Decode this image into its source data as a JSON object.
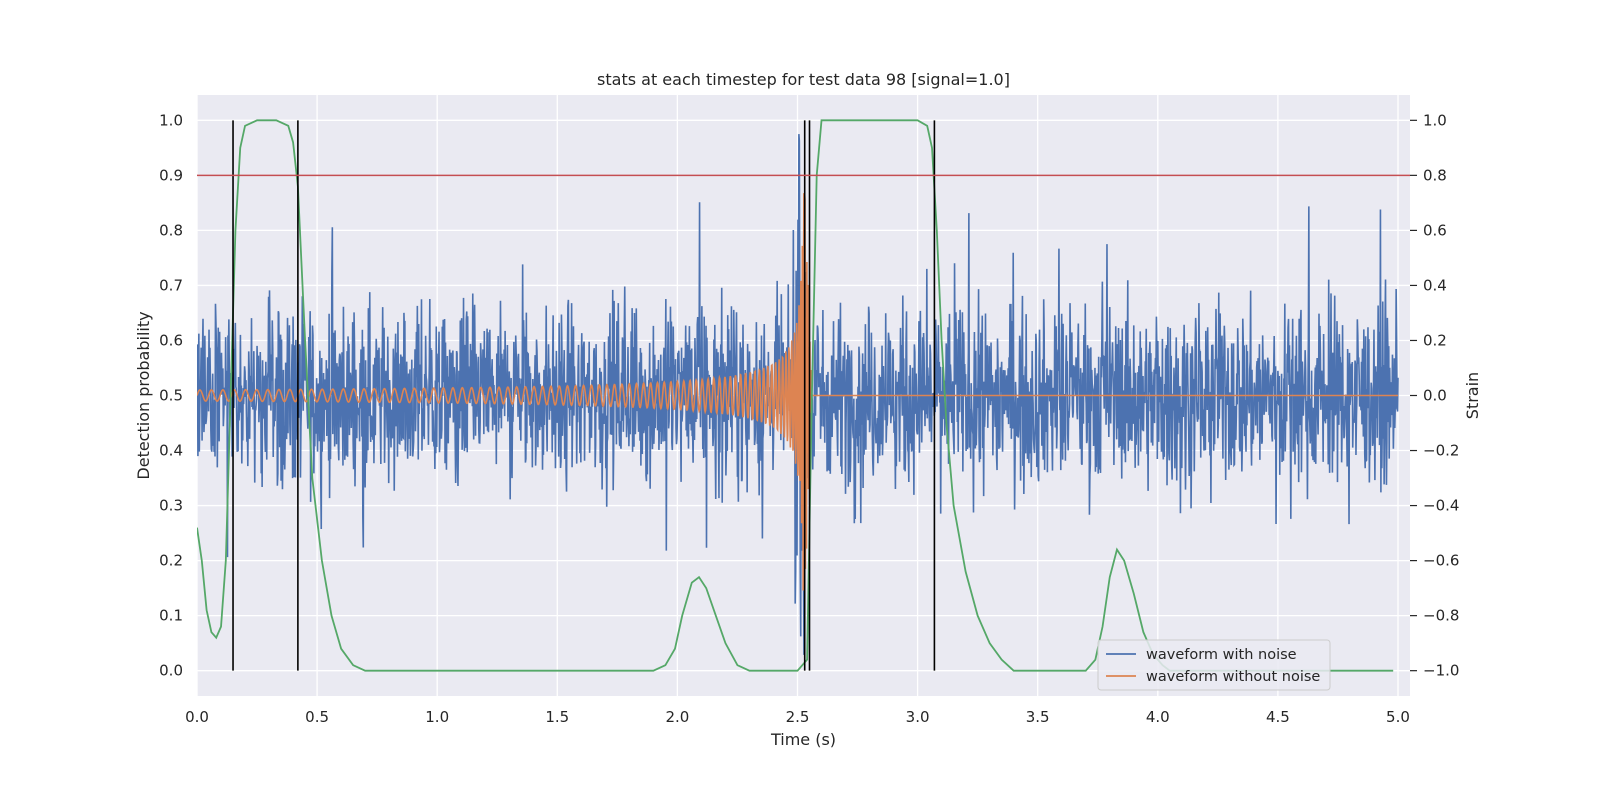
{
  "chart_data": {
    "type": "line",
    "title": "stats at each timestep for test data 98 [signal=1.0]",
    "xlabel": "Time (s)",
    "ylabel_left": "Detection probability",
    "ylabel_right": "Strain",
    "xlim": [
      0.0,
      5.05
    ],
    "ylim_left": [
      -0.046,
      1.046
    ],
    "ylim_right": [
      -1.092,
      1.092
    ],
    "x_ticks": [
      "0.0",
      "0.5",
      "1.0",
      "1.5",
      "2.0",
      "2.5",
      "3.0",
      "3.5",
      "4.0",
      "4.5",
      "5.0"
    ],
    "y_left_ticks": [
      "0.0",
      "0.1",
      "0.2",
      "0.3",
      "0.4",
      "0.5",
      "0.6",
      "0.7",
      "0.8",
      "0.9",
      "1.0"
    ],
    "y_right_ticks": [
      "−1.0",
      "−0.8",
      "−0.6",
      "−0.4",
      "−0.2",
      "0.0",
      "0.2",
      "0.4",
      "0.6",
      "0.8",
      "1.0"
    ],
    "grid": true,
    "background": "#eaeaf2",
    "threshold": {
      "value": 0.9,
      "color": "#c44e52"
    },
    "event_markers_x": [
      0.15,
      0.42,
      2.53,
      2.55,
      3.07
    ],
    "detection_probability": {
      "color": "#55a868",
      "points": [
        [
          0.0,
          0.26
        ],
        [
          0.02,
          0.2
        ],
        [
          0.04,
          0.11
        ],
        [
          0.06,
          0.07
        ],
        [
          0.08,
          0.06
        ],
        [
          0.1,
          0.08
        ],
        [
          0.12,
          0.2
        ],
        [
          0.14,
          0.5
        ],
        [
          0.16,
          0.8
        ],
        [
          0.18,
          0.95
        ],
        [
          0.2,
          0.99
        ],
        [
          0.25,
          1.0
        ],
        [
          0.33,
          1.0
        ],
        [
          0.38,
          0.99
        ],
        [
          0.4,
          0.96
        ],
        [
          0.42,
          0.88
        ],
        [
          0.45,
          0.6
        ],
        [
          0.48,
          0.35
        ],
        [
          0.52,
          0.2
        ],
        [
          0.56,
          0.1
        ],
        [
          0.6,
          0.04
        ],
        [
          0.65,
          0.01
        ],
        [
          0.7,
          0.0
        ],
        [
          1.0,
          0.0
        ],
        [
          1.5,
          0.0
        ],
        [
          1.9,
          0.0
        ],
        [
          1.95,
          0.01
        ],
        [
          1.99,
          0.04
        ],
        [
          2.02,
          0.1
        ],
        [
          2.06,
          0.16
        ],
        [
          2.09,
          0.17
        ],
        [
          2.12,
          0.15
        ],
        [
          2.16,
          0.1
        ],
        [
          2.2,
          0.05
        ],
        [
          2.25,
          0.01
        ],
        [
          2.3,
          0.0
        ],
        [
          2.45,
          0.0
        ],
        [
          2.5,
          0.0
        ],
        [
          2.54,
          0.02
        ],
        [
          2.56,
          0.5
        ],
        [
          2.58,
          0.9
        ],
        [
          2.6,
          1.0
        ],
        [
          2.8,
          1.0
        ],
        [
          3.0,
          1.0
        ],
        [
          3.04,
          0.99
        ],
        [
          3.06,
          0.95
        ],
        [
          3.08,
          0.8
        ],
        [
          3.1,
          0.6
        ],
        [
          3.12,
          0.45
        ],
        [
          3.15,
          0.3
        ],
        [
          3.2,
          0.18
        ],
        [
          3.25,
          0.1
        ],
        [
          3.3,
          0.05
        ],
        [
          3.35,
          0.02
        ],
        [
          3.4,
          0.0
        ],
        [
          3.7,
          0.0
        ],
        [
          3.74,
          0.02
        ],
        [
          3.77,
          0.08
        ],
        [
          3.8,
          0.17
        ],
        [
          3.83,
          0.22
        ],
        [
          3.86,
          0.2
        ],
        [
          3.9,
          0.14
        ],
        [
          3.94,
          0.07
        ],
        [
          3.98,
          0.03
        ],
        [
          4.02,
          0.01
        ],
        [
          4.05,
          0.0
        ],
        [
          4.98,
          0.0
        ]
      ]
    },
    "series": [
      {
        "name": "waveform with noise",
        "color": "#4c72b0",
        "duration": 5.0,
        "spread": 0.22,
        "spike_max": 0.85
      },
      {
        "name": "waveform without noise",
        "color": "#dd8452",
        "t_merge": 2.53,
        "t_end": 2.56,
        "amplitude_start": 0.02,
        "amplitude_peak": 0.78
      }
    ],
    "legend": {
      "position": "lower-right"
    }
  }
}
